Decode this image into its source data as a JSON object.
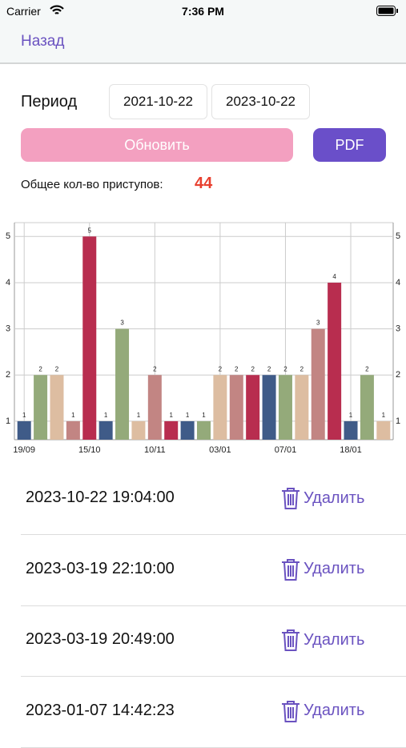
{
  "status_bar": {
    "carrier": "Carrier",
    "time": "7:36 PM"
  },
  "nav": {
    "back": "Назад"
  },
  "period": {
    "label": "Период",
    "from": "2021-10-22",
    "to": "2023-10-22"
  },
  "buttons": {
    "refresh": "Обновить",
    "pdf": "PDF"
  },
  "total": {
    "label": "Общее кол-во приступов:",
    "value": 44
  },
  "chart_data": {
    "type": "bar",
    "categories": [
      "19/09",
      null,
      null,
      null,
      "15/10",
      null,
      null,
      null,
      "10/11",
      null,
      null,
      null,
      "03/01",
      null,
      null,
      null,
      "07/01",
      null,
      null,
      null,
      "18/01",
      null,
      null
    ],
    "values": [
      1,
      2,
      2,
      1,
      5,
      1,
      3,
      1,
      2,
      1,
      1,
      1,
      2,
      2,
      2,
      2,
      2,
      2,
      3,
      4,
      1,
      2,
      1
    ],
    "colors": [
      "#3f5b88",
      "#94aa7a",
      "#ddbda1",
      "#c28583",
      "#b82d4f"
    ],
    "ylim": [
      0.6,
      5.3
    ],
    "yticks": [
      1,
      2,
      3,
      4,
      5
    ],
    "grid": true
  },
  "records": [
    {
      "datetime": "2023-10-22 19:04:00",
      "action": "Удалить"
    },
    {
      "datetime": "2023-03-19 22:10:00",
      "action": "Удалить"
    },
    {
      "datetime": "2023-03-19 20:49:00",
      "action": "Удалить"
    },
    {
      "datetime": "2023-01-07 14:42:23",
      "action": "Удалить"
    }
  ]
}
